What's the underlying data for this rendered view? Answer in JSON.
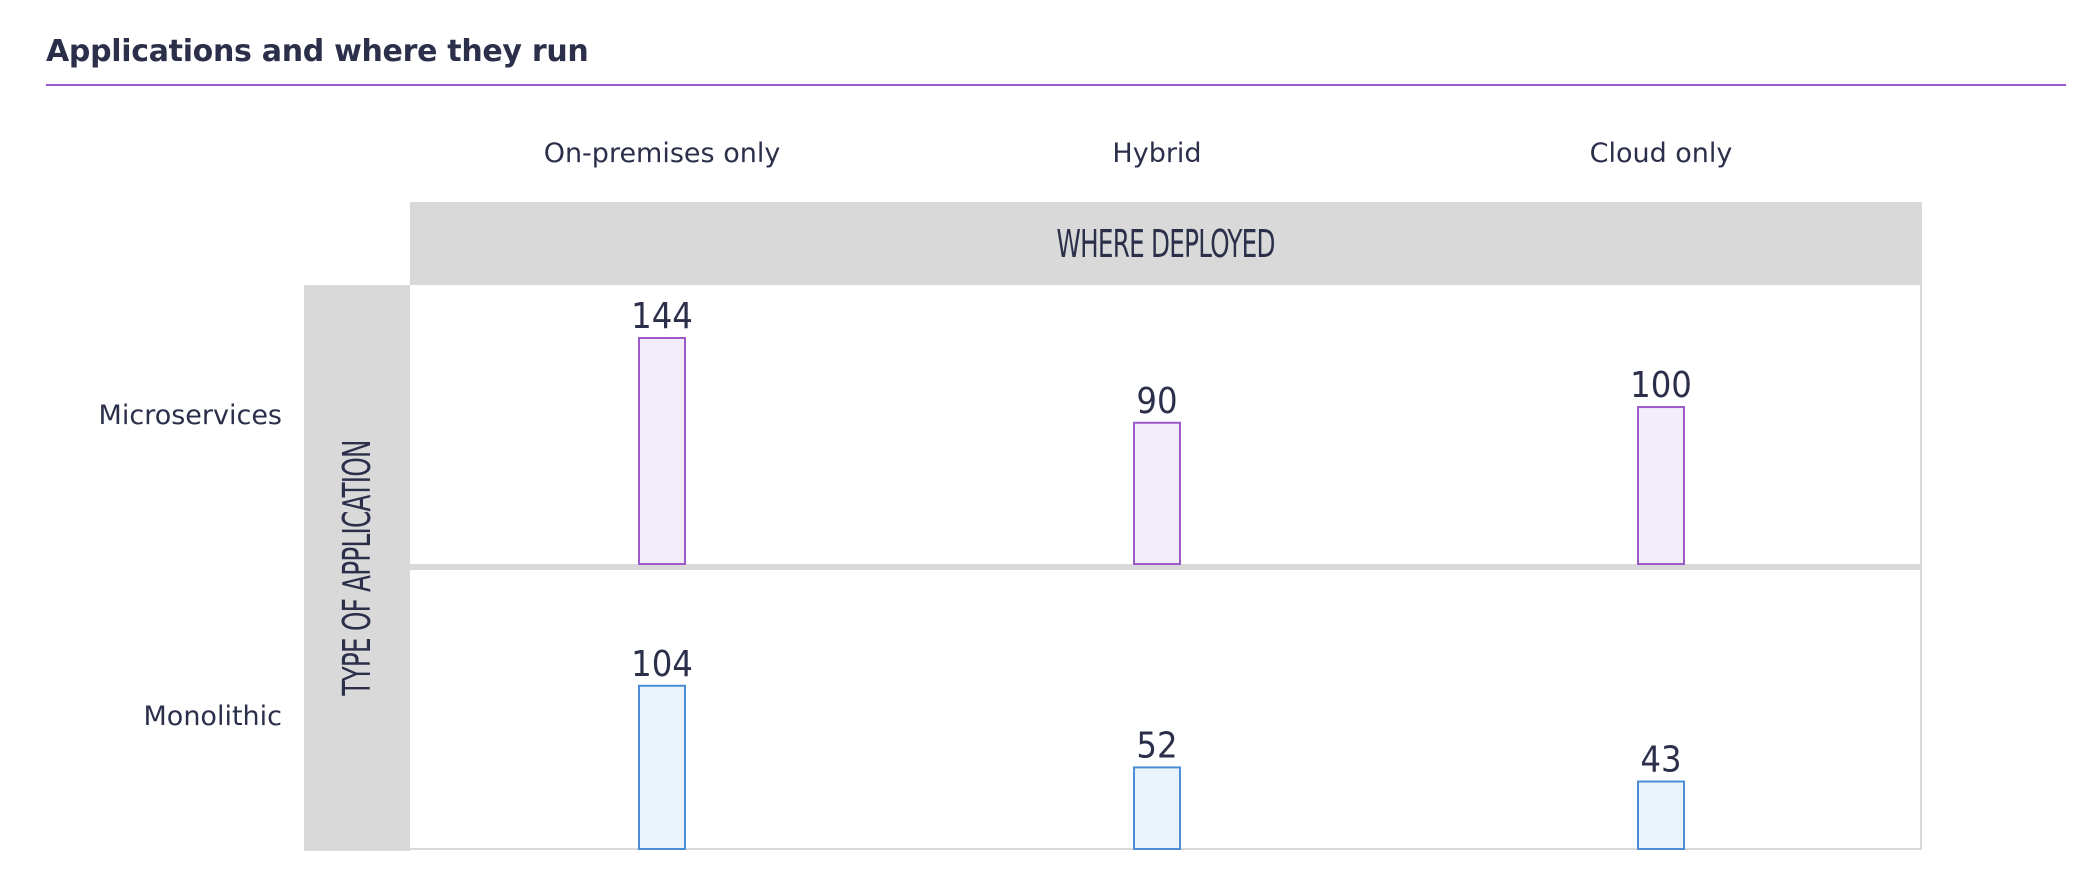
{
  "title": "Applications and where they run",
  "chart_data": {
    "type": "bar",
    "title": "Applications and where they run",
    "x_axis_title": "WHERE DEPLOYED",
    "y_axis_title": "TYPE OF APPLICATION",
    "categories": [
      "On-premises only",
      "Hybrid",
      "Cloud only"
    ],
    "series": [
      {
        "name": "Microservices",
        "values": [
          144,
          90,
          100
        ],
        "color": "#9b59c9",
        "fill": "#f3edf9"
      },
      {
        "name": "Monolithic",
        "values": [
          104,
          52,
          43
        ],
        "color": "#4a8fd6",
        "fill": "#eaf2fb"
      }
    ],
    "ylim": [
      0,
      144
    ],
    "grid": false,
    "legend": "none"
  }
}
